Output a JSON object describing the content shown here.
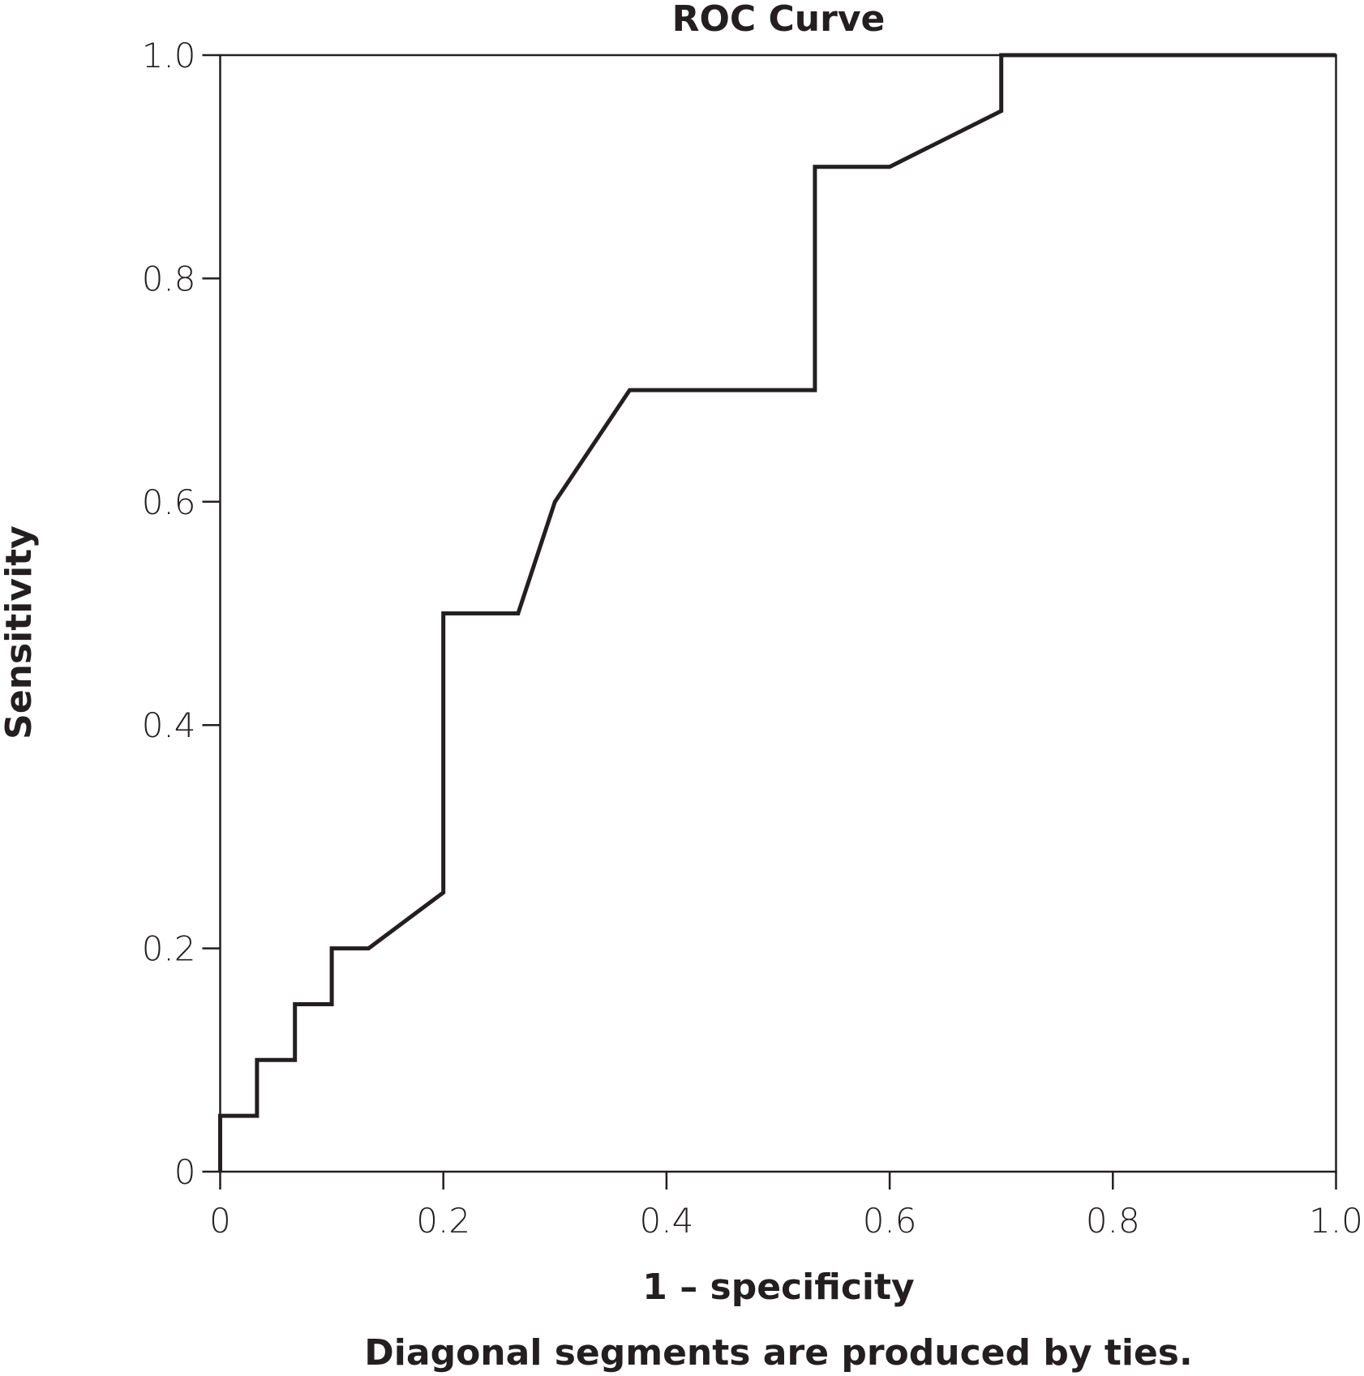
{
  "chart_data": {
    "type": "line",
    "title": "ROC Curve",
    "xlabel": "1 – specificity",
    "ylabel": "Sensitivity",
    "footnote": "Diagonal segments are produced by ties.",
    "xlim": [
      0,
      1.0
    ],
    "ylim": [
      0,
      1.0
    ],
    "xticks": [
      "0",
      "0.2",
      "0.4",
      "0.6",
      "0.8",
      "1.0"
    ],
    "yticks": [
      "0",
      "0.2",
      "0.4",
      "0.6",
      "0.8",
      "1.0"
    ],
    "grid": false,
    "line_color": "#231f20",
    "series": [
      {
        "x": [
          0,
          0,
          0.033,
          0.033,
          0.067,
          0.067,
          0.1,
          0.1,
          0.133,
          0.2,
          0.2,
          0.267,
          0.3,
          0.367,
          0.533,
          0.533,
          0.6,
          0.7,
          0.7,
          1.0
        ],
        "y": [
          0,
          0.05,
          0.05,
          0.1,
          0.1,
          0.15,
          0.15,
          0.2,
          0.2,
          0.25,
          0.5,
          0.5,
          0.6,
          0.7,
          0.7,
          0.9,
          0.9,
          0.95,
          1.0,
          1.0
        ]
      }
    ]
  }
}
